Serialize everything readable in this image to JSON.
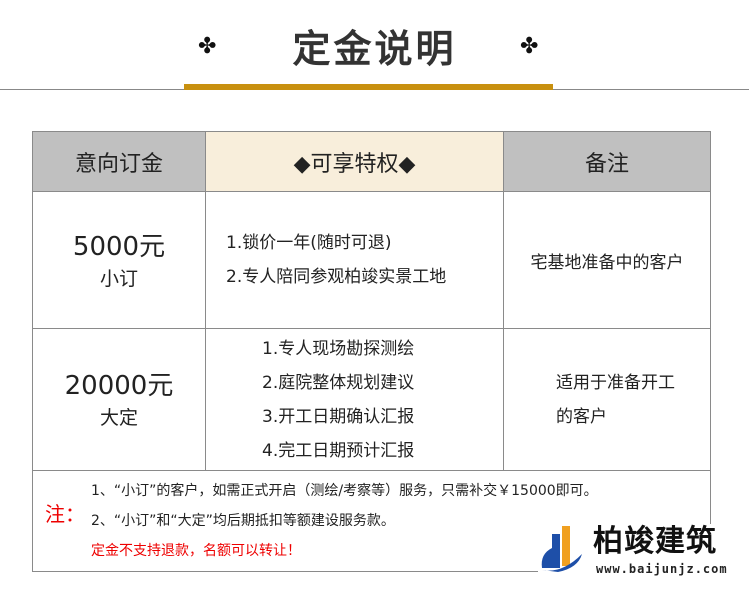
{
  "header": {
    "title": "定金说明",
    "ornament": "✤"
  },
  "table": {
    "headers": [
      "意向订金",
      "◆可享特权◆",
      "备注"
    ],
    "rows": [
      {
        "amount": "5000元",
        "type": "小订",
        "privileges": [
          "1.锁价一年(随时可退)",
          "2.专人陪同参观柏竣实景工地"
        ],
        "remark": [
          "宅基地准备中的客户"
        ]
      },
      {
        "amount": "20000元",
        "type": "大定",
        "privileges": [
          "1.专人现场勘探测绘",
          "2.庭院整体规划建议",
          "3.开工日期确认汇报",
          "4.完工日期预计汇报"
        ],
        "remark": [
          "适用于准备开工",
          "的客户"
        ]
      }
    ]
  },
  "notes": {
    "label": "注：",
    "items": [
      "1、“小订”的客户，如需正式开启（测绘/考察等）服务，只需补交￥15000即可。",
      "2、“小订”和“大定”均后期抵扣等额建设服务款。"
    ],
    "warning": "定金不支持退款，名额可以转让！"
  },
  "logo": {
    "name": "柏竣建筑",
    "url": "www.baijunjz.com"
  },
  "colors": {
    "gold": "#c8900f",
    "header_gray": "#c0c0c0",
    "header_cream": "#f8eedb",
    "red": "#e00000"
  }
}
